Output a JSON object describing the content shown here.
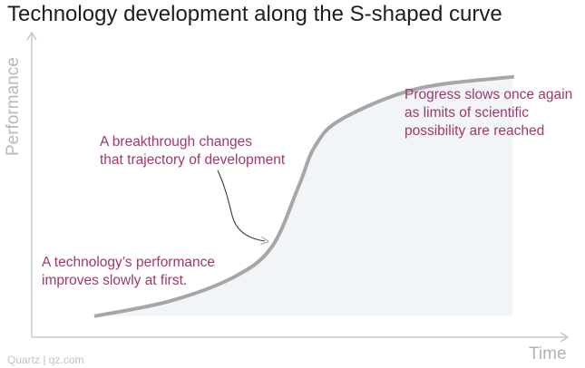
{
  "chart_data": {
    "type": "line",
    "title": "Technology development along the S-shaped curve",
    "xlabel": "Time",
    "ylabel": "Performance",
    "grid": false,
    "legend": "none",
    "axis_tick_labels": false,
    "series": [
      {
        "color": "#a6a6a6",
        "points": [
          {
            "x": 0.12,
            "y": 0.07
          },
          {
            "x": 0.26,
            "y": 0.12
          },
          {
            "x": 0.38,
            "y": 0.2
          },
          {
            "x": 0.45,
            "y": 0.3
          },
          {
            "x": 0.5,
            "y": 0.5
          },
          {
            "x": 0.53,
            "y": 0.63
          },
          {
            "x": 0.58,
            "y": 0.72
          },
          {
            "x": 0.72,
            "y": 0.82
          },
          {
            "x": 0.9,
            "y": 0.86
          }
        ]
      }
    ],
    "annotations": [
      {
        "id": "a1",
        "text": "A technology’s performance\nimproves slowly at first.",
        "color": "#a2366f"
      },
      {
        "id": "a2",
        "text": "A breakthrough changes\nthat trajectory of development",
        "color": "#a2366f"
      },
      {
        "id": "a3",
        "text": "Progress slows once again\nas limits of scientific\npossibility are reached",
        "color": "#a2366f"
      }
    ]
  },
  "source": "Quartz | qz.com"
}
